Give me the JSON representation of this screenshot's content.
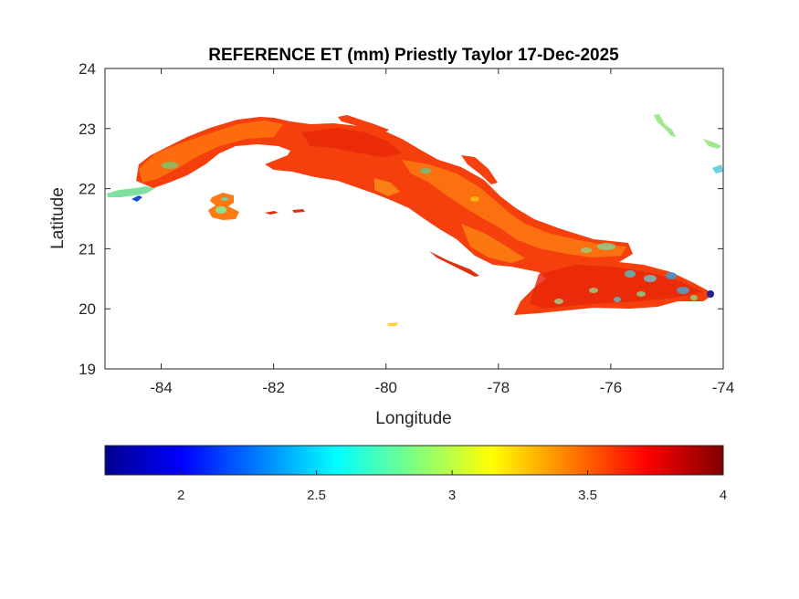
{
  "title": "REFERENCE ET (mm) Priestly Taylor 17-Dec-2025",
  "map": {
    "xlabel": "Longitude",
    "ylabel": "Latitude",
    "xlim": [
      -85,
      -74
    ],
    "ylim": [
      19,
      24
    ],
    "xticks": [
      -84,
      -82,
      -80,
      -78,
      -76,
      -74
    ],
    "yticks": [
      19,
      20,
      21,
      22,
      23,
      24
    ],
    "xtick_labels": [
      "-84",
      "-82",
      "-80",
      "-78",
      "-76",
      "-74"
    ],
    "ytick_labels": [
      "19",
      "20",
      "21",
      "22",
      "23",
      "24"
    ]
  },
  "colorbar": {
    "colormap": "jet",
    "range": [
      1.72,
      4.0
    ],
    "ticks": [
      2,
      2.5,
      3,
      3.5,
      4
    ],
    "tick_labels": [
      "2",
      "2.5",
      "3",
      "3.5",
      "4"
    ],
    "colors": [
      "#00008f",
      "#0000ff",
      "#00ffff",
      "#ffff00",
      "#ff0000",
      "#800000"
    ]
  }
}
